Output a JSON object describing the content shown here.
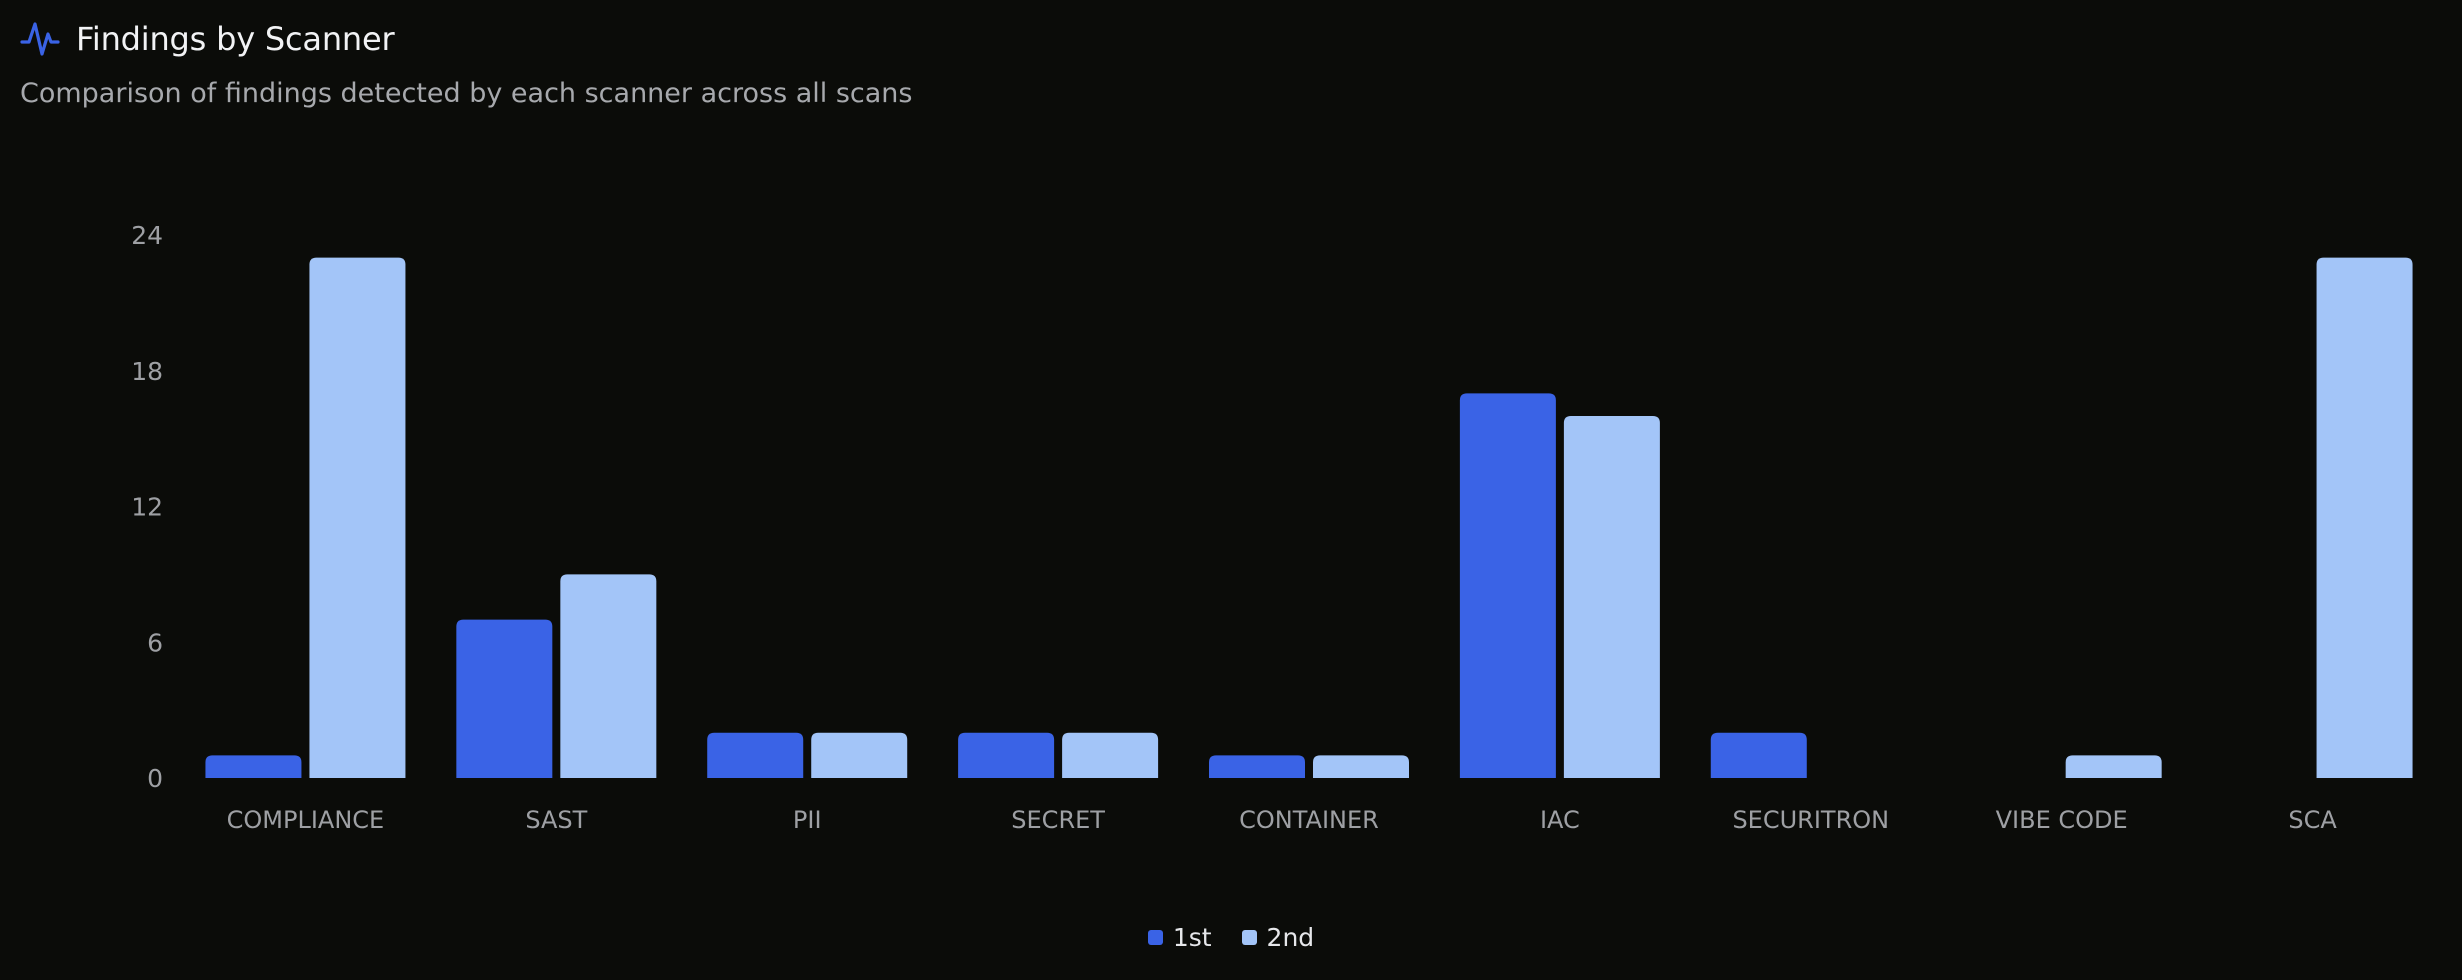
{
  "header": {
    "title": "Findings by Scanner",
    "subtitle": "Comparison of findings detected by each scanner across all scans",
    "icon": "activity-pulse-icon"
  },
  "colors": {
    "background": "#0b0c09",
    "series_1st": "#3a63e6",
    "series_2nd": "#a3c5f8",
    "axis_text": "#9ea0a4",
    "accent_icon": "#3a63e6"
  },
  "chart_data": {
    "type": "bar",
    "title": "Findings by Scanner",
    "subtitle": "Comparison of findings detected by each scanner across all scans",
    "categories": [
      "COMPLIANCE",
      "SAST",
      "PII",
      "SECRET",
      "CONTAINER",
      "IAC",
      "SECURITRON",
      "VIBE CODE",
      "SCA"
    ],
    "series": [
      {
        "name": "1st",
        "values": [
          1,
          7,
          2,
          2,
          1,
          17,
          2,
          0,
          0
        ]
      },
      {
        "name": "2nd",
        "values": [
          23,
          9,
          2,
          2,
          1,
          16,
          0,
          1,
          23
        ]
      }
    ],
    "ylim": [
      0,
      24
    ],
    "yticks": [
      0,
      6,
      12,
      18,
      24
    ],
    "grid": false,
    "legend_position": "bottom-center",
    "xlabel": "",
    "ylabel": ""
  },
  "legend": {
    "items": [
      {
        "label": "1st"
      },
      {
        "label": "2nd"
      }
    ]
  }
}
